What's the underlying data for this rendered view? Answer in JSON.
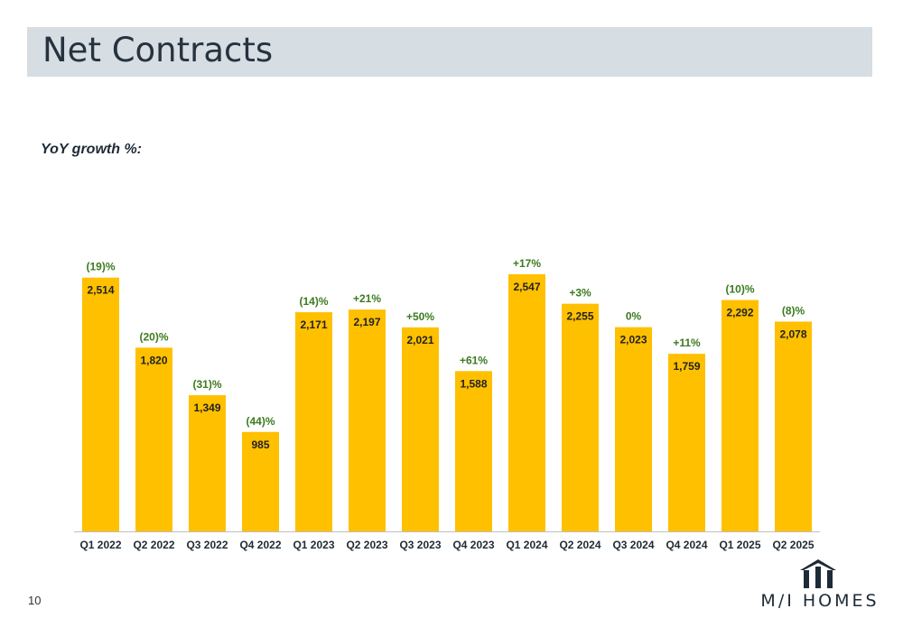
{
  "header": {
    "title": "Net Contracts"
  },
  "subtitle": "YoY growth %:",
  "page_number": "10",
  "logo": {
    "text": "M/I HOMES",
    "icon": "house-icon"
  },
  "colors": {
    "bar": "#ffc000",
    "growth_text": "#3c7a1e",
    "title_bar": "#d6dde3"
  },
  "chart_data": {
    "type": "bar",
    "categories": [
      "Q1 2022",
      "Q2 2022",
      "Q3 2022",
      "Q4 2022",
      "Q1 2023",
      "Q2 2023",
      "Q3 2023",
      "Q4 2023",
      "Q1 2024",
      "Q2 2024",
      "Q3 2024",
      "Q4 2024",
      "Q1 2025",
      "Q2 2025"
    ],
    "values": [
      2514,
      1820,
      1349,
      985,
      2171,
      2197,
      2021,
      1588,
      2547,
      2255,
      2023,
      1759,
      2292,
      2078
    ],
    "value_labels": [
      "2,514",
      "1,820",
      "1,349",
      "985",
      "2,171",
      "2,197",
      "2,021",
      "1,588",
      "2,547",
      "2,255",
      "2,023",
      "1,759",
      "2,292",
      "2,078"
    ],
    "growth_labels": [
      "(19)%",
      "(20)%",
      "(31)%",
      "(44)%",
      "(14)%",
      "+21%",
      "+50%",
      "+61%",
      "+17%",
      "+3%",
      "0%",
      "+11%",
      "(10)%",
      "(8)%"
    ],
    "ylim": [
      0,
      2600
    ],
    "grid": false,
    "legend": "none"
  }
}
